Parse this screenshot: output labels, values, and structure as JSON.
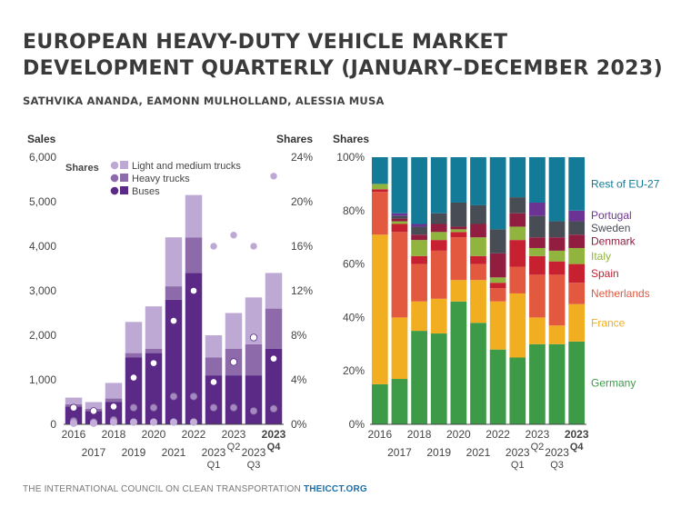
{
  "header": {
    "title_line1": "EUROPEAN HEAVY-DUTY VEHICLE MARKET",
    "title_line2": "DEVELOPMENT QUARTERLY (JANUARY–DECEMBER 2023)",
    "authors": "SATHVIKA ANANDA, EAMONN MULHOLLAND, ALESSIA MUSA"
  },
  "footer": {
    "org": "THE INTERNATIONAL COUNCIL ON CLEAN TRANSPORTATION",
    "url": "THEICCT.ORG"
  },
  "chart_data": [
    {
      "type": "bar",
      "stacked": true,
      "secondary_axis": true,
      "ylabel": "Sales",
      "y2label": "Shares",
      "ylim": [
        0,
        6000
      ],
      "y2lim": [
        0,
        24
      ],
      "yticks": [
        "0",
        "1,000",
        "2,000",
        "3,000",
        "4,000",
        "5,000",
        "6,000"
      ],
      "y2ticks": [
        "0%",
        "4%",
        "8%",
        "12%",
        "16%",
        "20%",
        "24%"
      ],
      "legend_title": "Shares",
      "legend_position": "top-left",
      "categories": [
        "2016",
        "2017",
        "2018",
        "2019",
        "2020",
        "2021",
        "2022",
        "2023 Q1",
        "2023 Q2",
        "2023 Q3",
        "2023 Q4"
      ],
      "xtick_labels": [
        {
          "label": "2016",
          "row": 1
        },
        {
          "label": "2017",
          "row": 2
        },
        {
          "label": "2018",
          "row": 1
        },
        {
          "label": "2019",
          "row": 2
        },
        {
          "label": "2020",
          "row": 1
        },
        {
          "label": "2021",
          "row": 2
        },
        {
          "label": "2022",
          "row": 1
        },
        {
          "label": "2023",
          "sub": "Q1",
          "row": 2
        },
        {
          "label": "2023",
          "sub": "Q2",
          "row": 1
        },
        {
          "label": "2023",
          "sub": "Q3",
          "row": 2
        },
        {
          "label": "2023",
          "sub": "Q4",
          "row": 1,
          "bold": true
        }
      ],
      "series": [
        {
          "name": "Buses",
          "color": "#5b2a86",
          "light_color": "#ffffff",
          "values": [
            400,
            300,
            500,
            1500,
            1600,
            2800,
            3400,
            1100,
            1100,
            1100,
            1700
          ],
          "shares": [
            1.5,
            1.2,
            1.6,
            4.2,
            5.5,
            9.3,
            12,
            3.8,
            5.6,
            7.8,
            5.9
          ]
        },
        {
          "name": "Heavy trucks",
          "color": "#8d6aaa",
          "light_color": "#a48bbf",
          "values": [
            50,
            50,
            80,
            100,
            100,
            300,
            800,
            400,
            600,
            700,
            900
          ],
          "shares": [
            0.3,
            0.2,
            0.4,
            1.5,
            1.5,
            2.5,
            2.5,
            1.5,
            1.5,
            1.2,
            1.4
          ]
        },
        {
          "name": "Light and medium trucks",
          "color": "#bea9d4",
          "light_color": "#c2aed8",
          "values": [
            150,
            150,
            350,
            700,
            950,
            1100,
            950,
            500,
            800,
            1050,
            800
          ],
          "shares": [
            0.1,
            0.1,
            0.2,
            0.2,
            0.2,
            0.2,
            0.2,
            16,
            17,
            16,
            22.3
          ]
        }
      ]
    },
    {
      "type": "bar",
      "stacked": true,
      "percent": true,
      "ylabel": "Shares",
      "ylim": [
        0,
        100
      ],
      "yticks": [
        "0%",
        "20%",
        "40%",
        "60%",
        "80%",
        "100%"
      ],
      "legend_position": "right",
      "categories": [
        "2016",
        "2017",
        "2018",
        "2019",
        "2020",
        "2021",
        "2022",
        "2023 Q1",
        "2023 Q2",
        "2023 Q3",
        "2023 Q4"
      ],
      "series": [
        {
          "name": "Germany",
          "color": "#3d9b48",
          "values": [
            15,
            17,
            35,
            34,
            46,
            38,
            28,
            25,
            30,
            30,
            31
          ]
        },
        {
          "name": "France",
          "color": "#f1ae20",
          "values": [
            56,
            23,
            11,
            13,
            8,
            16,
            18,
            24,
            10,
            7,
            14
          ]
        },
        {
          "name": "Netherlands",
          "color": "#e2593f",
          "values": [
            16,
            32,
            14,
            18,
            16,
            6,
            5,
            10,
            16,
            19,
            8
          ]
        },
        {
          "name": "Spain",
          "color": "#c72031",
          "values": [
            1,
            3,
            3,
            4,
            2,
            3,
            2,
            10,
            7,
            5,
            7
          ]
        },
        {
          "name": "Italy",
          "color": "#91b43f",
          "values": [
            2,
            1,
            6,
            3,
            1,
            7,
            2,
            5,
            3,
            4,
            6
          ]
        },
        {
          "name": "Denmark",
          "color": "#911d40",
          "values": [
            0,
            1,
            2,
            3,
            1,
            5,
            9,
            5,
            4,
            5,
            5
          ]
        },
        {
          "name": "Sweden",
          "color": "#484d55",
          "values": [
            0,
            1,
            3,
            4,
            9,
            7,
            9,
            6,
            8,
            6,
            5
          ]
        },
        {
          "name": "Portugal",
          "color": "#6b3494",
          "values": [
            0,
            1,
            1,
            0,
            0,
            0,
            0,
            0,
            5,
            0,
            4
          ]
        },
        {
          "name": "Rest of EU-27",
          "color": "#137a97",
          "values": [
            10,
            21,
            25,
            21,
            17,
            18,
            27,
            15,
            17,
            24,
            20
          ]
        }
      ]
    }
  ]
}
